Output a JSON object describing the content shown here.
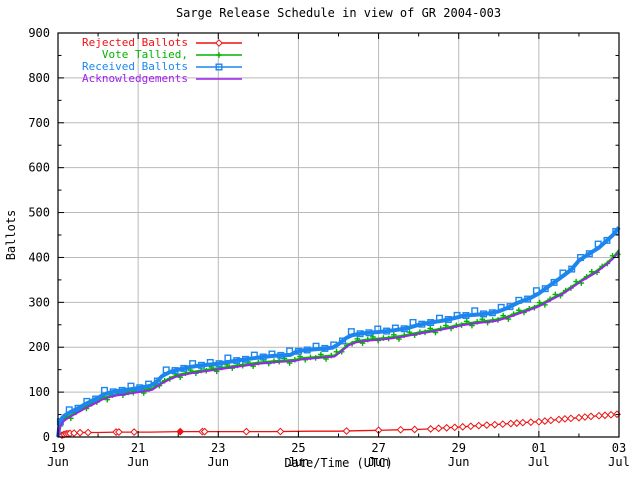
{
  "colors": {
    "background": "#ffffff",
    "frame": "#000000",
    "grid": "#b9b9b9",
    "tick_text": "#000000"
  },
  "chart_data": {
    "type": "line",
    "title": "Sarge Release Schedule in view of GR 2004-003",
    "xlabel": "Date/Time (UTC)",
    "ylabel": "Ballots",
    "ylim": [
      0,
      900
    ],
    "xlim_days": [
      0,
      14
    ],
    "grid": true,
    "legend_position": "top-left-inside",
    "y_major_ticks": [
      0,
      100,
      200,
      300,
      400,
      500,
      600,
      700,
      800,
      900
    ],
    "y_tick_labels": [
      "0",
      "100",
      "200",
      "300",
      "400",
      "500",
      "600",
      "700",
      "800",
      "900"
    ],
    "y_minor_step": 50,
    "x_major_ticks": [
      {
        "day": 0,
        "line1": "19",
        "line2": "Jun"
      },
      {
        "day": 2,
        "line1": "21",
        "line2": "Jun"
      },
      {
        "day": 4,
        "line1": "23",
        "line2": "Jun"
      },
      {
        "day": 6,
        "line1": "25",
        "line2": "Jun"
      },
      {
        "day": 8,
        "line1": "27",
        "line2": "Jun"
      },
      {
        "day": 10,
        "line1": "29",
        "line2": "Jun"
      },
      {
        "day": 12,
        "line1": "01",
        "line2": "Jul"
      },
      {
        "day": 14,
        "line1": "03",
        "line2": "Jul"
      }
    ],
    "x_minor_days": [
      1,
      3,
      5,
      7,
      9,
      11,
      13
    ],
    "series": [
      {
        "name": "Rejected Ballots",
        "color": "#ee1111",
        "marker": "diamond",
        "line_width": 1.3,
        "points": [
          [
            0,
            0
          ],
          [
            0.08,
            3
          ],
          [
            0.12,
            5
          ],
          [
            0.2,
            7
          ],
          [
            0.3,
            8
          ],
          [
            0.45,
            9
          ],
          [
            0.6,
            10
          ],
          [
            1.0,
            10
          ],
          [
            1.45,
            11
          ],
          [
            2.3,
            11
          ],
          [
            3.05,
            12
          ],
          [
            4.0,
            12
          ],
          [
            5.3,
            12
          ],
          [
            6.3,
            13
          ],
          [
            7.0,
            13
          ],
          [
            7.5,
            14
          ],
          [
            8.0,
            15
          ],
          [
            8.5,
            16
          ],
          [
            9.0,
            17
          ],
          [
            9.3,
            18
          ],
          [
            9.6,
            20
          ],
          [
            10.0,
            22
          ],
          [
            10.3,
            24
          ],
          [
            10.6,
            26
          ],
          [
            11.0,
            28
          ],
          [
            11.3,
            30
          ],
          [
            11.6,
            32
          ],
          [
            12.0,
            34
          ],
          [
            12.3,
            37
          ],
          [
            12.6,
            40
          ],
          [
            13.0,
            43
          ],
          [
            13.3,
            46
          ],
          [
            13.6,
            48
          ],
          [
            14.0,
            51
          ]
        ],
        "marker_days": [
          0.1,
          0.15,
          0.2,
          0.25,
          0.3,
          0.4,
          0.55,
          0.75,
          1.45,
          1.52,
          1.9,
          3.6,
          3.66,
          4.7,
          5.55,
          7.2,
          8.0,
          8.55,
          8.9,
          9.3,
          9.5,
          9.7,
          9.9,
          10.1,
          10.3,
          10.5,
          10.7,
          10.9,
          11.1,
          11.3,
          11.45,
          11.6,
          11.8,
          12.0,
          12.15,
          12.3,
          12.5,
          12.65,
          12.8,
          13.0,
          13.15,
          13.3,
          13.5,
          13.65,
          13.8,
          13.95
        ],
        "filled_marker_days": [
          3.05
        ]
      },
      {
        "name": "Vote Tallied,",
        "color": "#00b400",
        "marker": "plus",
        "line_width": 1.8,
        "marker_spacing_days": 0.13,
        "points": [
          [
            0,
            0
          ],
          [
            0.05,
            25
          ],
          [
            0.1,
            35
          ],
          [
            0.2,
            42
          ],
          [
            0.35,
            50
          ],
          [
            0.55,
            60
          ],
          [
            0.75,
            70
          ],
          [
            0.95,
            79
          ],
          [
            1.1,
            86
          ],
          [
            1.3,
            92
          ],
          [
            1.5,
            96
          ],
          [
            1.8,
            100
          ],
          [
            2.1,
            104
          ],
          [
            2.35,
            108
          ],
          [
            2.55,
            120
          ],
          [
            2.8,
            132
          ],
          [
            3.0,
            139
          ],
          [
            3.4,
            146
          ],
          [
            3.8,
            151
          ],
          [
            4.2,
            156
          ],
          [
            4.6,
            161
          ],
          [
            5.0,
            166
          ],
          [
            5.5,
            170
          ],
          [
            5.9,
            172
          ],
          [
            6.1,
            176
          ],
          [
            6.5,
            179
          ],
          [
            6.9,
            182
          ],
          [
            7.05,
            192
          ],
          [
            7.25,
            207
          ],
          [
            7.45,
            214
          ],
          [
            7.8,
            218
          ],
          [
            8.2,
            221
          ],
          [
            8.6,
            226
          ],
          [
            9.0,
            233
          ],
          [
            9.4,
            239
          ],
          [
            9.8,
            246
          ],
          [
            10.1,
            252
          ],
          [
            10.5,
            257
          ],
          [
            10.9,
            261
          ],
          [
            11.2,
            268
          ],
          [
            11.5,
            278
          ],
          [
            11.8,
            287
          ],
          [
            12.0,
            294
          ],
          [
            12.3,
            308
          ],
          [
            12.6,
            322
          ],
          [
            12.9,
            340
          ],
          [
            13.1,
            352
          ],
          [
            13.4,
            368
          ],
          [
            13.7,
            388
          ],
          [
            13.85,
            400
          ],
          [
            14.0,
            417
          ]
        ]
      },
      {
        "name": "Received Ballots",
        "color": "#1c86ee",
        "marker": "square",
        "line_width": 4,
        "marker_spacing_days": 0.22,
        "points": [
          [
            0,
            0
          ],
          [
            0.04,
            28
          ],
          [
            0.08,
            40
          ],
          [
            0.15,
            47
          ],
          [
            0.3,
            55
          ],
          [
            0.5,
            64
          ],
          [
            0.7,
            74
          ],
          [
            0.9,
            83
          ],
          [
            1.0,
            87
          ],
          [
            1.1,
            93
          ],
          [
            1.25,
            98
          ],
          [
            1.45,
            102
          ],
          [
            1.7,
            105
          ],
          [
            2.0,
            109
          ],
          [
            2.3,
            114
          ],
          [
            2.45,
            122
          ],
          [
            2.6,
            136
          ],
          [
            2.8,
            145
          ],
          [
            3.0,
            150
          ],
          [
            3.3,
            156
          ],
          [
            3.6,
            160
          ],
          [
            4.0,
            163
          ],
          [
            4.3,
            168
          ],
          [
            4.6,
            172
          ],
          [
            5.0,
            177
          ],
          [
            5.4,
            181
          ],
          [
            5.8,
            183
          ],
          [
            5.95,
            190
          ],
          [
            6.1,
            193
          ],
          [
            6.5,
            196
          ],
          [
            6.85,
            199
          ],
          [
            7.0,
            207
          ],
          [
            7.2,
            221
          ],
          [
            7.35,
            227
          ],
          [
            7.6,
            231
          ],
          [
            8.0,
            234
          ],
          [
            8.4,
            238
          ],
          [
            8.7,
            242
          ],
          [
            9.0,
            250
          ],
          [
            9.3,
            255
          ],
          [
            9.6,
            259
          ],
          [
            9.9,
            265
          ],
          [
            10.1,
            270
          ],
          [
            10.5,
            273
          ],
          [
            10.8,
            276
          ],
          [
            11.0,
            280
          ],
          [
            11.2,
            287
          ],
          [
            11.5,
            300
          ],
          [
            11.8,
            310
          ],
          [
            12.0,
            320
          ],
          [
            12.2,
            333
          ],
          [
            12.5,
            352
          ],
          [
            12.8,
            372
          ],
          [
            13.0,
            393
          ],
          [
            13.2,
            405
          ],
          [
            13.5,
            422
          ],
          [
            13.7,
            438
          ],
          [
            13.85,
            450
          ],
          [
            14.0,
            467
          ]
        ]
      },
      {
        "name": "Acknowledgements",
        "color": "#a020f0",
        "marker": "none",
        "line_width": 1.8,
        "points": [
          [
            0,
            0
          ],
          [
            0.05,
            22
          ],
          [
            0.1,
            32
          ],
          [
            0.2,
            39
          ],
          [
            0.35,
            47
          ],
          [
            0.55,
            57
          ],
          [
            0.75,
            67
          ],
          [
            0.95,
            76
          ],
          [
            1.1,
            83
          ],
          [
            1.3,
            89
          ],
          [
            1.5,
            93
          ],
          [
            1.8,
            97
          ],
          [
            2.1,
            101
          ],
          [
            2.35,
            105
          ],
          [
            2.55,
            117
          ],
          [
            2.8,
            129
          ],
          [
            3.0,
            136
          ],
          [
            3.4,
            143
          ],
          [
            3.8,
            148
          ],
          [
            4.2,
            153
          ],
          [
            4.6,
            158
          ],
          [
            5.0,
            163
          ],
          [
            5.5,
            167
          ],
          [
            5.9,
            169
          ],
          [
            6.1,
            173
          ],
          [
            6.5,
            176
          ],
          [
            6.9,
            179
          ],
          [
            7.05,
            189
          ],
          [
            7.25,
            204
          ],
          [
            7.45,
            211
          ],
          [
            7.8,
            215
          ],
          [
            8.2,
            218
          ],
          [
            8.6,
            223
          ],
          [
            9.0,
            230
          ],
          [
            9.4,
            236
          ],
          [
            9.8,
            243
          ],
          [
            10.1,
            249
          ],
          [
            10.5,
            254
          ],
          [
            10.9,
            258
          ],
          [
            11.2,
            265
          ],
          [
            11.5,
            275
          ],
          [
            11.8,
            284
          ],
          [
            12.0,
            291
          ],
          [
            12.3,
            305
          ],
          [
            12.6,
            319
          ],
          [
            12.9,
            337
          ],
          [
            13.1,
            349
          ],
          [
            13.4,
            365
          ],
          [
            13.7,
            385
          ],
          [
            13.85,
            397
          ],
          [
            14.0,
            413
          ]
        ]
      }
    ]
  }
}
